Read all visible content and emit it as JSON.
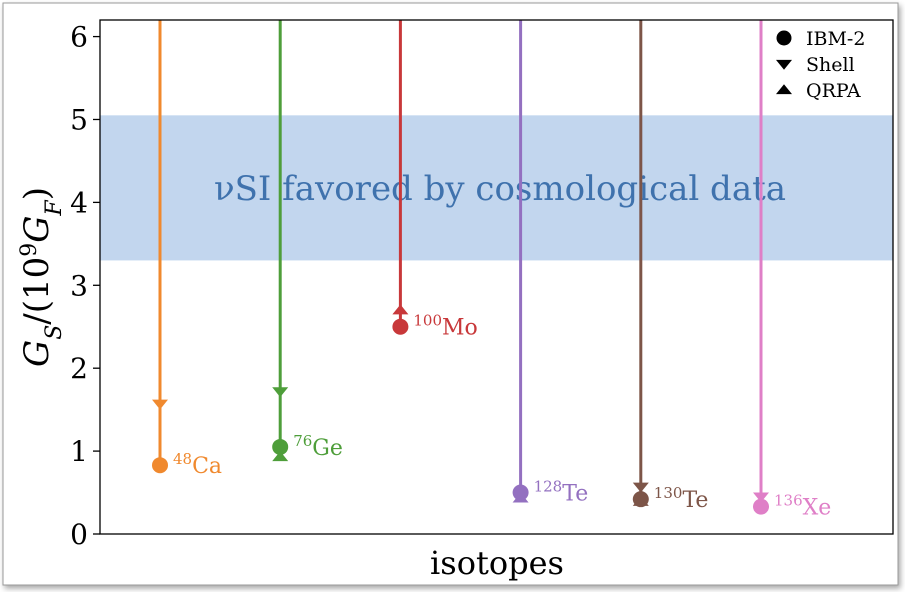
{
  "chart_data": {
    "type": "scatter",
    "xlabel": "isotopes",
    "ylabel": "G_S/(10^9 G_F)",
    "ylim": [
      0,
      6.2
    ],
    "yticks": [
      "0",
      "1",
      "2",
      "3",
      "4",
      "5",
      "6"
    ],
    "grid": false,
    "legend_placement": "top-right",
    "band": {
      "y_range": [
        3.3,
        5.05
      ],
      "label": "νSI favored by cosmological data",
      "color": "#aac6e8"
    },
    "legend": [
      {
        "marker": "circle",
        "label": "IBM-2"
      },
      {
        "marker": "triangle-down",
        "label": "Shell"
      },
      {
        "marker": "triangle-up",
        "label": "QRPA"
      }
    ],
    "isotopes": [
      {
        "mass": "48",
        "symbol": "Ca",
        "color": "#f0892e",
        "ibm2": 0.83,
        "shell": 1.57,
        "qrpa": null
      },
      {
        "mass": "76",
        "symbol": "Ge",
        "color": "#4e9e3a",
        "ibm2": 1.05,
        "shell": 1.72,
        "qrpa": 0.93
      },
      {
        "mass": "100",
        "symbol": "Mo",
        "color": "#c8383a",
        "ibm2": 2.5,
        "shell": null,
        "qrpa": 2.7
      },
      {
        "mass": "128",
        "symbol": "Te",
        "color": "#9370c0",
        "ibm2": 0.5,
        "shell": null,
        "qrpa": 0.43
      },
      {
        "mass": "130",
        "symbol": "Te",
        "color": "#7d5548",
        "ibm2": 0.42,
        "shell": 0.57,
        "qrpa": 0.39
      },
      {
        "mass": "136",
        "symbol": "Xe",
        "color": "#df7fc7",
        "ibm2": 0.33,
        "shell": 0.45,
        "qrpa": 0.38
      }
    ]
  }
}
